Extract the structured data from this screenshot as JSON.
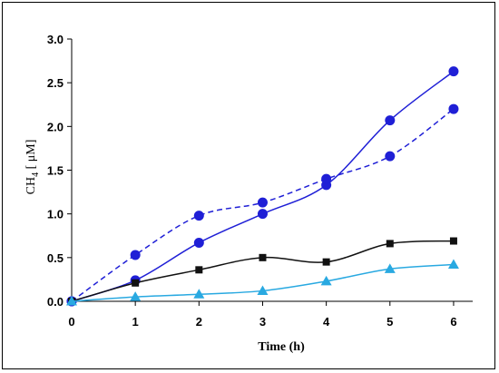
{
  "chart_data": {
    "type": "line",
    "xlabel": "Time (h)",
    "ylabel": {
      "main": "CH",
      "sub": "4",
      "unit": " [ μM]"
    },
    "xlim": [
      0,
      6.3
    ],
    "ylim": [
      0,
      3.0
    ],
    "x_ticks": [
      0,
      1,
      2,
      3,
      4,
      5,
      6
    ],
    "y_ticks": [
      0.0,
      0.5,
      1.0,
      1.5,
      2.0,
      2.5,
      3.0
    ],
    "x_tick_labels": [
      "0",
      "1",
      "2",
      "3",
      "4",
      "5",
      "6"
    ],
    "y_tick_labels": [
      "0.0",
      "0.5",
      "1.0",
      "1.5",
      "2.0",
      "2.5",
      "3.0"
    ],
    "grid": false,
    "legend": "none",
    "series": [
      {
        "color": "#1f1fd6",
        "marker": "circle",
        "line": "solid",
        "x": [
          0,
          1,
          2,
          3,
          4,
          5,
          6
        ],
        "values": [
          0.0,
          0.24,
          0.67,
          1.0,
          1.33,
          2.07,
          2.63
        ]
      },
      {
        "color": "#1f1fd6",
        "marker": "circle",
        "line": "dashed",
        "x": [
          0,
          1,
          2,
          3,
          4,
          5,
          6
        ],
        "values": [
          0.0,
          0.53,
          0.98,
          1.13,
          1.4,
          1.66,
          2.2
        ]
      },
      {
        "color": "#111111",
        "marker": "square",
        "line": "solid",
        "x": [
          0,
          1,
          2,
          3,
          4,
          5,
          6
        ],
        "values": [
          0.0,
          0.21,
          0.36,
          0.5,
          0.45,
          0.66,
          0.69
        ]
      },
      {
        "color": "#29a9e1",
        "marker": "triangle",
        "line": "solid",
        "x": [
          0,
          1,
          2,
          3,
          4,
          5,
          6
        ],
        "values": [
          0.0,
          0.05,
          0.08,
          0.12,
          0.23,
          0.37,
          0.42
        ]
      }
    ]
  }
}
